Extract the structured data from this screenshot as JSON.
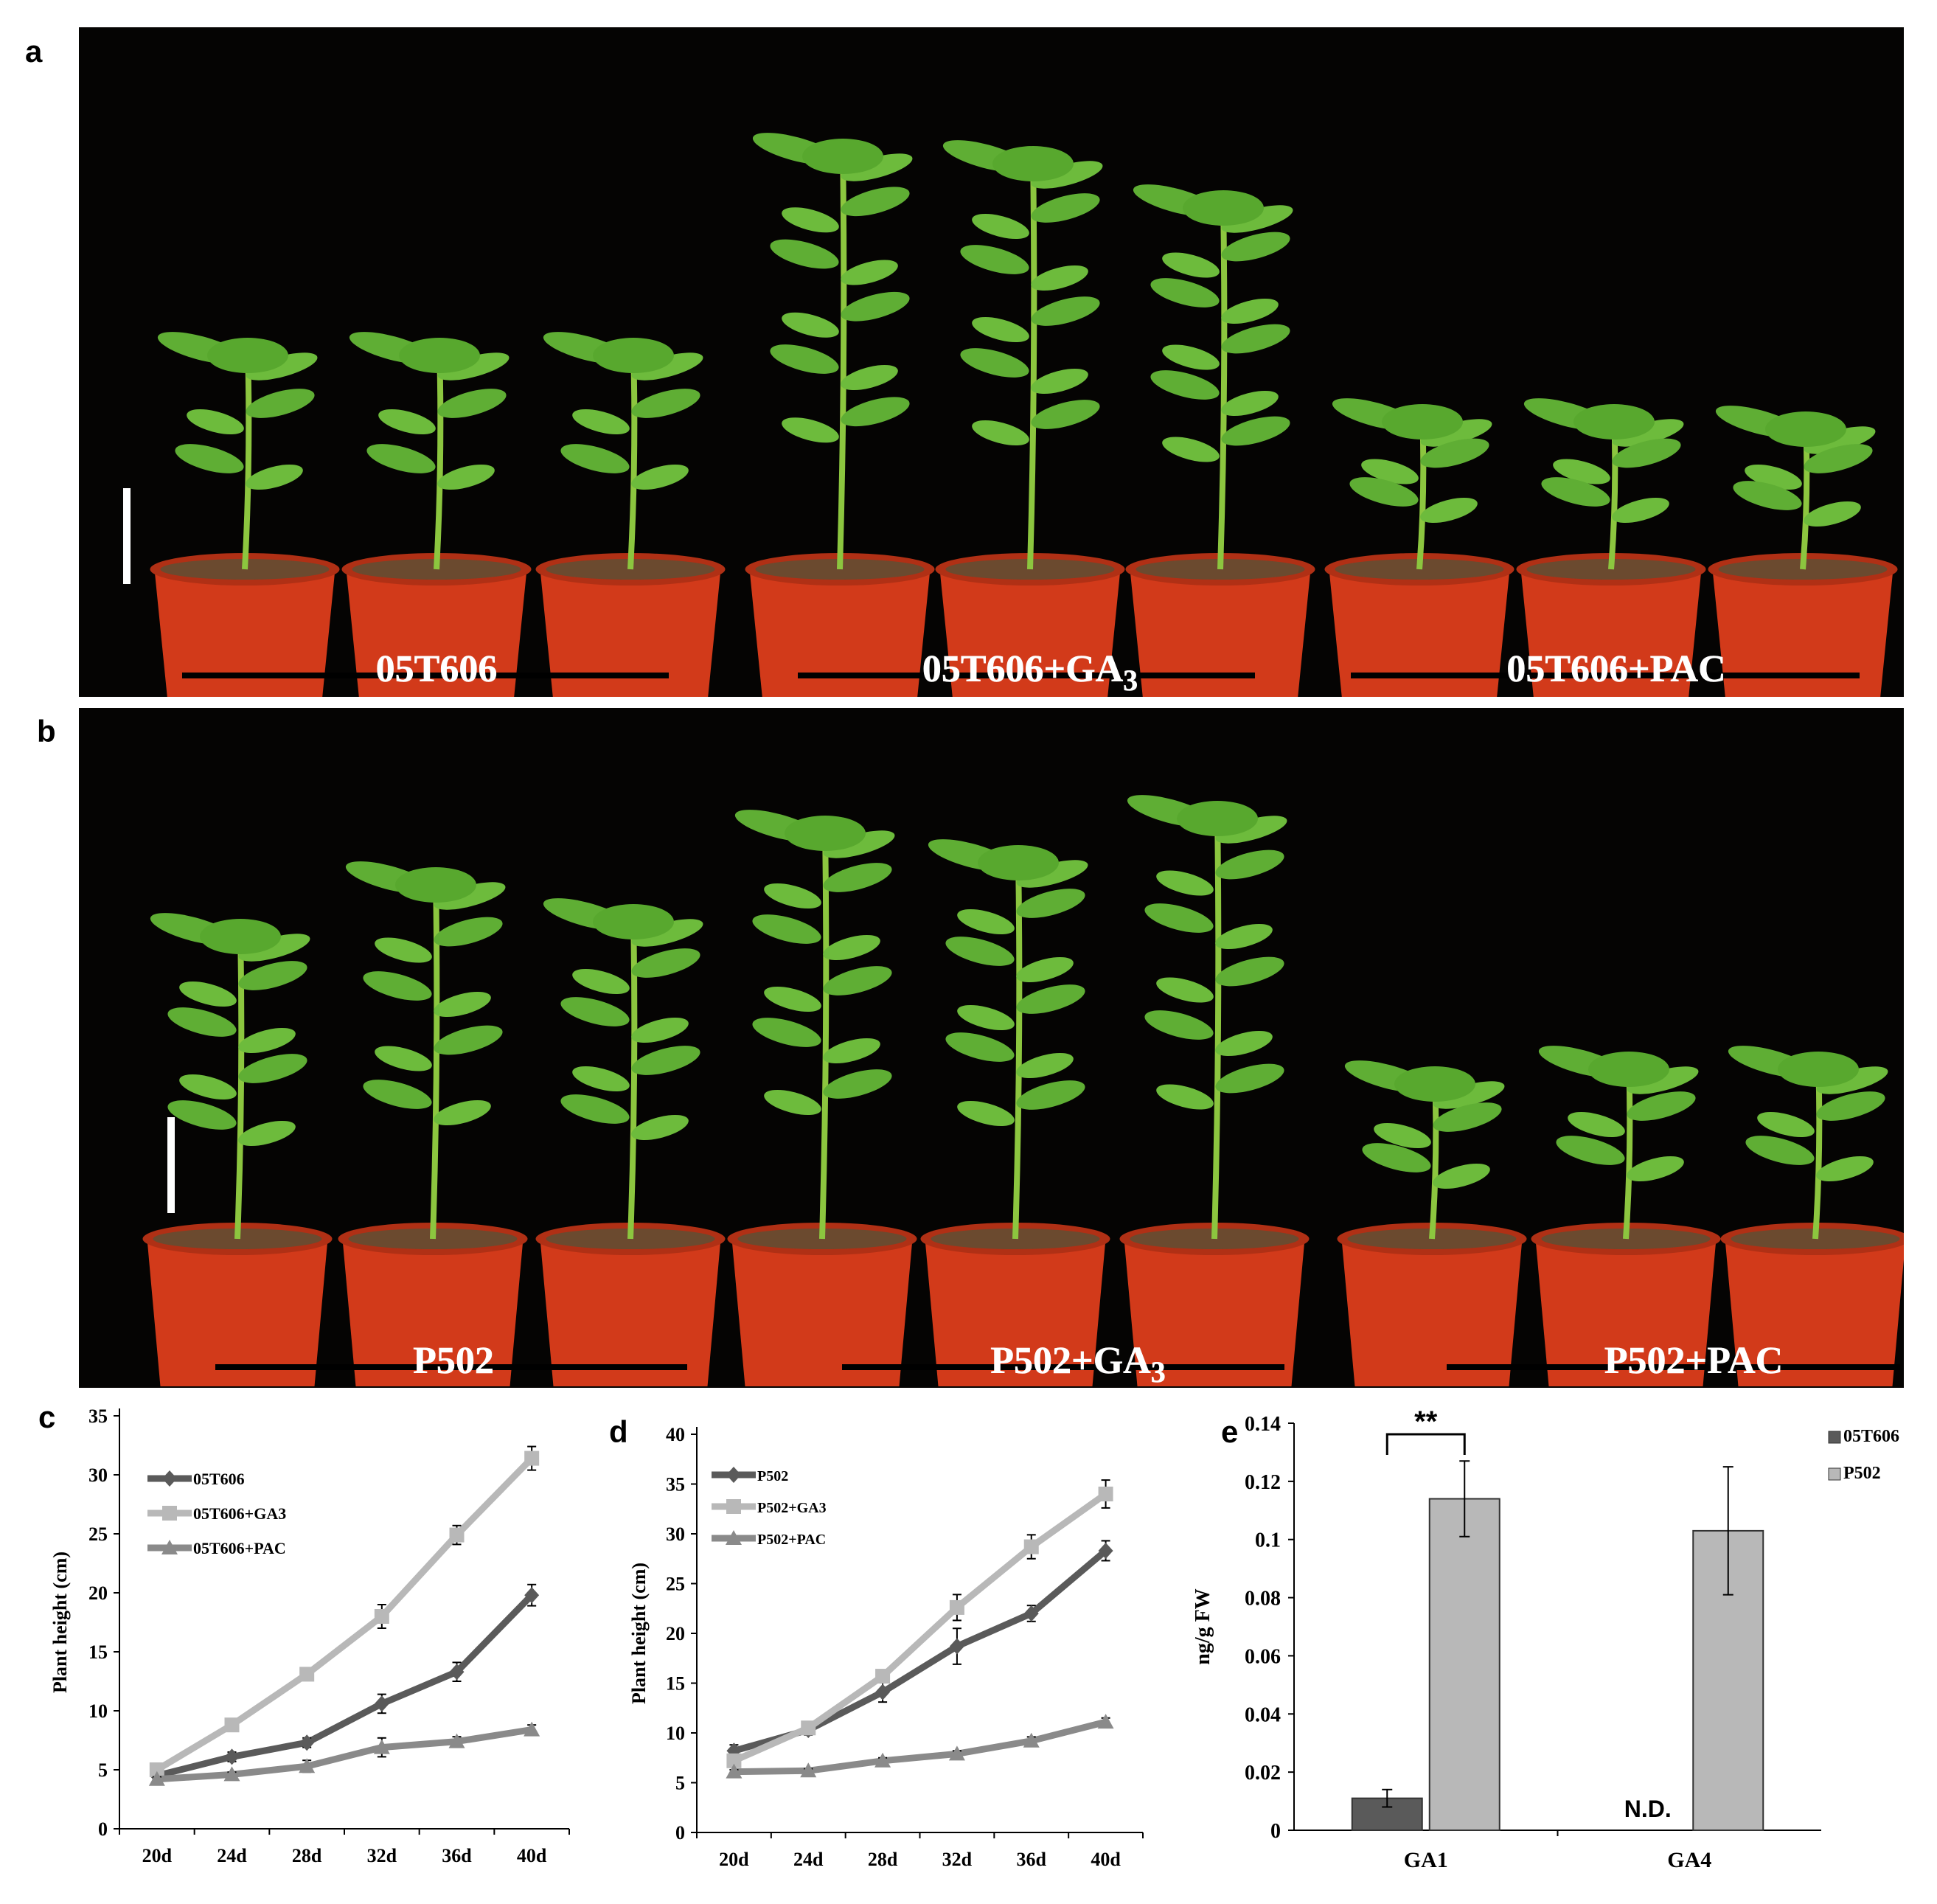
{
  "panels": {
    "a": {
      "letter": "a",
      "groups": [
        {
          "label": "05T606",
          "sub": ""
        },
        {
          "label": "05T606+GA",
          "sub": "3"
        },
        {
          "label": "05T606+PAC",
          "sub": ""
        }
      ]
    },
    "b": {
      "letter": "b",
      "groups": [
        {
          "label": "P502",
          "sub": ""
        },
        {
          "label": "P502+GA",
          "sub": "3"
        },
        {
          "label": "P502+PAC",
          "sub": ""
        }
      ]
    },
    "c": {
      "letter": "c"
    },
    "d": {
      "letter": "d"
    },
    "e": {
      "letter": "e"
    }
  },
  "colors": {
    "photo_bg": "#050403",
    "pot": "#d23a1a",
    "soil": "#6b4a2f",
    "leaf": "#5fae34",
    "dark_series": "#5a5a5a",
    "light_series": "#b8b8b8",
    "mid_series": "#8a8a8a"
  },
  "chart_data": [
    {
      "id": "c",
      "type": "line",
      "title": "",
      "xlabel": "",
      "ylabel": "Plant  height  (cm)",
      "categories": [
        "20d",
        "24d",
        "28d",
        "32d",
        "36d",
        "40d"
      ],
      "ylim": [
        0,
        35
      ],
      "yticks": [
        "0",
        "5",
        "10",
        "15",
        "20",
        "25",
        "30",
        "35"
      ],
      "legend_position": "top-left",
      "series": [
        {
          "name": "05T606",
          "color": "#5a5a5a",
          "marker": "diamond",
          "values": [
            4.5,
            6.1,
            7.3,
            10.6,
            13.3,
            19.8
          ],
          "errors": [
            0.3,
            0.4,
            0.4,
            0.8,
            0.8,
            0.9
          ]
        },
        {
          "name": "05T606+GA3",
          "color": "#b8b8b8",
          "marker": "square",
          "values": [
            5.0,
            8.8,
            13.1,
            18.0,
            24.9,
            31.4
          ],
          "errors": [
            0.4,
            0.5,
            0.5,
            1.0,
            0.8,
            1.0
          ]
        },
        {
          "name": "05T606+PAC",
          "color": "#8a8a8a",
          "marker": "triangle",
          "values": [
            4.2,
            4.6,
            5.3,
            6.9,
            7.4,
            8.4
          ],
          "errors": [
            0.2,
            0.2,
            0.5,
            0.8,
            0.4,
            0.4
          ]
        }
      ]
    },
    {
      "id": "d",
      "type": "line",
      "title": "",
      "xlabel": "",
      "ylabel": "Plant  height  (cm)",
      "categories": [
        "20d",
        "24d",
        "28d",
        "32d",
        "36d",
        "40d"
      ],
      "ylim": [
        0,
        40
      ],
      "yticks": [
        "0",
        "5",
        "10",
        "15",
        "20",
        "25",
        "30",
        "35",
        "40"
      ],
      "legend_position": "top-left",
      "series": [
        {
          "name": "P502",
          "color": "#5a5a5a",
          "marker": "diamond",
          "values": [
            8.2,
            10.3,
            14.1,
            18.7,
            22.0,
            28.3
          ],
          "errors": [
            0.6,
            0.5,
            1.0,
            1.8,
            0.8,
            1.0
          ]
        },
        {
          "name": "P502+GA3",
          "color": "#b8b8b8",
          "marker": "square",
          "values": [
            7.2,
            10.5,
            15.7,
            22.6,
            28.7,
            34.0
          ],
          "errors": [
            0.5,
            0.5,
            0.6,
            1.3,
            1.2,
            1.4
          ]
        },
        {
          "name": "P502+PAC",
          "color": "#8a8a8a",
          "marker": "triangle",
          "values": [
            6.1,
            6.2,
            7.2,
            7.9,
            9.2,
            11.1
          ],
          "errors": [
            0.2,
            0.2,
            0.3,
            0.3,
            0.4,
            0.4
          ]
        }
      ]
    },
    {
      "id": "e",
      "type": "bar",
      "title": "",
      "xlabel": "",
      "ylabel": "ng/g FW",
      "categories": [
        "GA1",
        "GA4"
      ],
      "ylim": [
        0,
        0.14
      ],
      "yticks": [
        "0",
        "0.02",
        "0.04",
        "0.06",
        "0.08",
        "0.1",
        "0.12",
        "0.14"
      ],
      "legend_position": "top-right",
      "series": [
        {
          "name": "05T606",
          "color": "#5a5a5a",
          "values": [
            0.011,
            null
          ],
          "errors": [
            0.003,
            null
          ]
        },
        {
          "name": "P502",
          "color": "#b8b8b8",
          "values": [
            0.114,
            0.103
          ],
          "errors": [
            0.013,
            0.022
          ]
        }
      ],
      "annotations": {
        "significance": "**",
        "not_detected": "N.D."
      }
    }
  ]
}
